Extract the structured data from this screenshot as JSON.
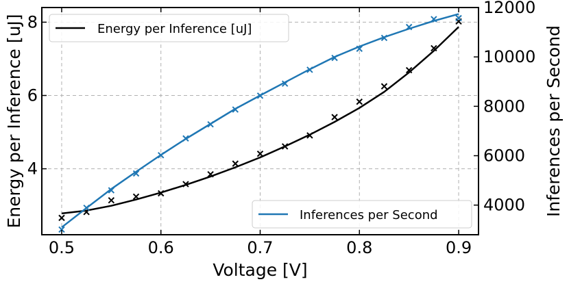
{
  "chart_data": {
    "type": "line",
    "x": [
      0.5,
      0.525,
      0.55,
      0.575,
      0.6,
      0.625,
      0.65,
      0.675,
      0.7,
      0.725,
      0.75,
      0.775,
      0.8,
      0.825,
      0.85,
      0.875,
      0.9
    ],
    "xlabel": "Voltage [V]",
    "xlim": [
      0.48,
      0.92
    ],
    "xticks": [
      0.5,
      0.6,
      0.7,
      0.8,
      0.9
    ],
    "xtick_labels": [
      "0.5",
      "0.6",
      "0.7",
      "0.8",
      "0.9"
    ],
    "grid": true,
    "left_axis": {
      "label": "Energy per Inference [uJ]",
      "ylim": [
        2.2,
        8.4
      ],
      "ticks": [
        4,
        6,
        8
      ],
      "tick_labels": [
        "4",
        "6",
        "8"
      ]
    },
    "right_axis": {
      "label": "Inferences per Second",
      "ylim": [
        2800,
        12000
      ],
      "ticks": [
        4000,
        6000,
        8000,
        10000,
        12000
      ],
      "tick_labels": [
        "4000",
        "6000",
        "8000",
        "10000",
        "12000"
      ]
    },
    "series": [
      {
        "name": "Energy per Inference [uJ]",
        "axis": "left",
        "color": "#000000",
        "measured": [
          2.66,
          2.82,
          3.14,
          3.24,
          3.33,
          3.58,
          3.85,
          4.14,
          4.41,
          4.61,
          4.91,
          5.41,
          5.83,
          6.25,
          6.69,
          7.29,
          8.02
        ],
        "fit": [
          2.78,
          2.86,
          2.99,
          3.16,
          3.35,
          3.56,
          3.79,
          4.04,
          4.31,
          4.61,
          4.93,
          5.28,
          5.66,
          6.1,
          6.63,
          7.22,
          7.87
        ]
      },
      {
        "name": "Inferences per Second",
        "axis": "right",
        "color": "#1f77b4",
        "measured": [
          3010,
          3890,
          4600,
          5280,
          6020,
          6700,
          7270,
          7870,
          8430,
          8920,
          9480,
          9960,
          10330,
          10770,
          11210,
          11530,
          11570
        ],
        "fit": [
          3100,
          3880,
          4650,
          5350,
          6030,
          6680,
          7290,
          7900,
          8440,
          8970,
          9500,
          10000,
          10420,
          10800,
          11140,
          11460,
          11740
        ]
      }
    ],
    "legends": [
      {
        "label": "Energy per Inference [uJ]",
        "placement": "upper-left",
        "color": "#000000"
      },
      {
        "label": "Inferences per Second",
        "placement": "lower-right",
        "color": "#1f77b4"
      }
    ]
  }
}
